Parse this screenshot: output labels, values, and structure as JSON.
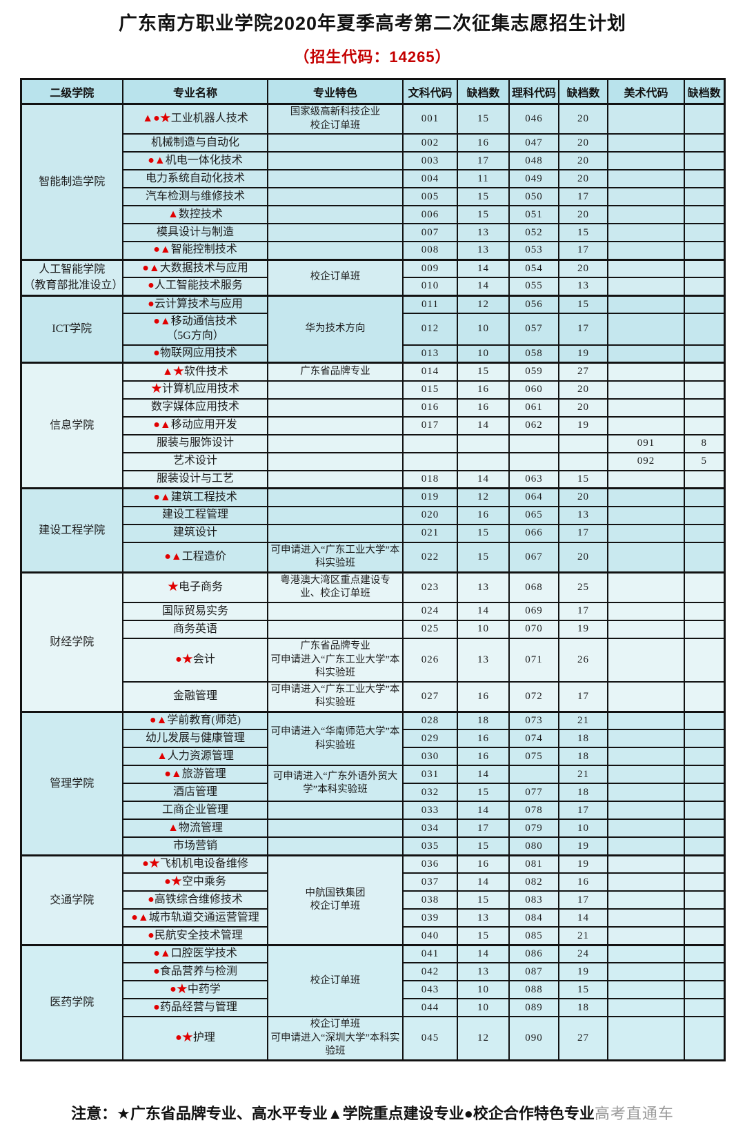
{
  "title": "广东南方职业学院2020年夏季高考第二次征集志愿招生计划",
  "subtitle": "（招生代码：14265）",
  "note": "注意：★广东省品牌专业、高水平专业▲学院重点建设专业●校企合作特色专业",
  "watermark": "高考直通车",
  "colors": {
    "symbol_red": "#e00000",
    "subtitle_red": "#c40000",
    "header_bg": "#b9e3ec",
    "border": "#121212"
  },
  "table": {
    "headers": [
      "二级学院",
      "专业名称",
      "专业特色",
      "文科代码",
      "缺档数",
      "理科代码",
      "缺档数",
      "美术代码",
      "缺档数"
    ],
    "groups": [
      {
        "college": "智能制造学院",
        "college2": "",
        "shade": "#cbe9ef",
        "rows": [
          {
            "sym": "▲●★",
            "major": "工业机器人技术",
            "major2": "",
            "feature": {
              "text": "国家级高新科技企业\n校企订单班",
              "span": 1
            },
            "cells": [
              "001",
              "15",
              "046",
              "20",
              "",
              ""
            ]
          },
          {
            "sym": "",
            "major": "机械制造与自动化",
            "major2": "",
            "feature": "",
            "cells": [
              "002",
              "16",
              "047",
              "20",
              "",
              ""
            ]
          },
          {
            "sym": "●▲",
            "major": "机电一体化技术",
            "major2": "",
            "feature": "",
            "cells": [
              "003",
              "17",
              "048",
              "20",
              "",
              ""
            ]
          },
          {
            "sym": "",
            "major": "电力系统自动化技术",
            "major2": "",
            "feature": "",
            "cells": [
              "004",
              "11",
              "049",
              "20",
              "",
              ""
            ]
          },
          {
            "sym": "",
            "major": "汽车检测与维修技术",
            "major2": "",
            "feature": "",
            "cells": [
              "005",
              "15",
              "050",
              "17",
              "",
              ""
            ]
          },
          {
            "sym": "▲",
            "major": "数控技术",
            "major2": "",
            "feature": "",
            "cells": [
              "006",
              "15",
              "051",
              "20",
              "",
              ""
            ]
          },
          {
            "sym": "",
            "major": "模具设计与制造",
            "major2": "",
            "feature": "",
            "cells": [
              "007",
              "13",
              "052",
              "15",
              "",
              ""
            ]
          },
          {
            "sym": "●▲",
            "major": "智能控制技术",
            "major2": "",
            "feature": "",
            "cells": [
              "008",
              "13",
              "053",
              "17",
              "",
              ""
            ]
          }
        ]
      },
      {
        "college": "人工智能学院",
        "college2": "（教育部批准设立）",
        "shade": "#d4edf2",
        "rows": [
          {
            "sym": "●▲",
            "major": "大数据技术与应用",
            "major2": "",
            "feature": {
              "text": "校企订单班",
              "span": 2
            },
            "cells": [
              "009",
              "14",
              "054",
              "20",
              "",
              ""
            ]
          },
          {
            "sym": "●",
            "major": "人工智能技术服务",
            "major2": "",
            "feature": null,
            "cells": [
              "010",
              "14",
              "055",
              "13",
              "",
              ""
            ]
          }
        ]
      },
      {
        "college": "ICT学院",
        "college2": "",
        "shade": "#c5e7ee",
        "rows": [
          {
            "sym": "●",
            "major": "云计算技术与应用",
            "major2": "",
            "feature": {
              "text": "华为技术方向",
              "span": 3
            },
            "cells": [
              "011",
              "12",
              "056",
              "15",
              "",
              ""
            ]
          },
          {
            "sym": "●▲",
            "major": "移动通信技术",
            "major2": "（5G方向）",
            "feature": null,
            "cells": [
              "012",
              "10",
              "057",
              "17",
              "",
              ""
            ]
          },
          {
            "sym": "●",
            "major": "物联网应用技术",
            "major2": "",
            "feature": null,
            "cells": [
              "013",
              "10",
              "058",
              "19",
              "",
              ""
            ]
          }
        ]
      },
      {
        "college": "信息学院",
        "college2": "",
        "shade": "#e4f4f6",
        "rows": [
          {
            "sym": "▲★",
            "major": "软件技术",
            "major2": "",
            "feature": {
              "text": "广东省品牌专业",
              "span": 1
            },
            "cells": [
              "014",
              "15",
              "059",
              "27",
              "",
              ""
            ]
          },
          {
            "sym": "★",
            "major": "计算机应用技术",
            "major2": "",
            "feature": "",
            "cells": [
              "015",
              "16",
              "060",
              "20",
              "",
              ""
            ]
          },
          {
            "sym": "",
            "major": "数字媒体应用技术",
            "major2": "",
            "feature": "",
            "cells": [
              "016",
              "16",
              "061",
              "20",
              "",
              ""
            ]
          },
          {
            "sym": "●▲",
            "major": "移动应用开发",
            "major2": "",
            "feature": "",
            "cells": [
              "017",
              "14",
              "062",
              "19",
              "",
              ""
            ]
          },
          {
            "sym": "",
            "major": "服装与服饰设计",
            "major2": "",
            "feature": "",
            "cells": [
              "",
              "",
              "",
              "",
              "091",
              "8"
            ]
          },
          {
            "sym": "",
            "major": "艺术设计",
            "major2": "",
            "feature": "",
            "cells": [
              "",
              "",
              "",
              "",
              "092",
              "5"
            ]
          },
          {
            "sym": "",
            "major": "服装设计与工艺",
            "major2": "",
            "feature": "",
            "cells": [
              "018",
              "14",
              "063",
              "15",
              "",
              ""
            ]
          }
        ]
      },
      {
        "college": "建设工程学院",
        "college2": "",
        "shade": "#c9e9ef",
        "rows": [
          {
            "sym": "●▲",
            "major": "建筑工程技术",
            "major2": "",
            "feature": "",
            "cells": [
              "019",
              "12",
              "064",
              "20",
              "",
              ""
            ]
          },
          {
            "sym": "",
            "major": "建设工程管理",
            "major2": "",
            "feature": "",
            "cells": [
              "020",
              "16",
              "065",
              "13",
              "",
              ""
            ]
          },
          {
            "sym": "",
            "major": "建筑设计",
            "major2": "",
            "feature": "",
            "cells": [
              "021",
              "15",
              "066",
              "17",
              "",
              ""
            ]
          },
          {
            "sym": "●▲",
            "major": "工程造价",
            "major2": "",
            "feature": {
              "text": "可申请进入“广东工业大学”本科实验班",
              "span": 1
            },
            "cells": [
              "022",
              "15",
              "067",
              "20",
              "",
              ""
            ]
          }
        ]
      },
      {
        "college": "财经学院",
        "college2": "",
        "shade": "#e7f5f7",
        "rows": [
          {
            "sym": "★",
            "major": "电子商务",
            "major2": "",
            "feature": {
              "text": "粤港澳大湾区重点建设专业、校企订单班",
              "span": 1
            },
            "cells": [
              "023",
              "13",
              "068",
              "25",
              "",
              ""
            ]
          },
          {
            "sym": "",
            "major": "国际贸易实务",
            "major2": "",
            "feature": "",
            "cells": [
              "024",
              "14",
              "069",
              "17",
              "",
              ""
            ]
          },
          {
            "sym": "",
            "major": "商务英语",
            "major2": "",
            "feature": "",
            "cells": [
              "025",
              "10",
              "070",
              "19",
              "",
              ""
            ]
          },
          {
            "sym": "●★",
            "major": "会计",
            "major2": "",
            "feature": {
              "text": "广东省品牌专业\n可申请进入“广东工业大学”本科实验班",
              "span": 1
            },
            "cells": [
              "026",
              "13",
              "071",
              "26",
              "",
              ""
            ]
          },
          {
            "sym": "",
            "major": "金融管理",
            "major2": "",
            "feature": {
              "text": "可申请进入“广东工业大学”本科实验班",
              "span": 1
            },
            "cells": [
              "027",
              "16",
              "072",
              "17",
              "",
              ""
            ]
          }
        ]
      },
      {
        "college": "管理学院",
        "college2": "",
        "shade": "#cdebf1",
        "rows": [
          {
            "sym": "●▲",
            "major": "学前教育(师范)",
            "major2": "",
            "feature": {
              "text": "可申请进入“华南师范大学”本科实验班",
              "span": 3
            },
            "cells": [
              "028",
              "18",
              "073",
              "21",
              "",
              ""
            ]
          },
          {
            "sym": "",
            "major": "幼儿发展与健康管理",
            "major2": "",
            "feature": null,
            "cells": [
              "029",
              "16",
              "074",
              "18",
              "",
              ""
            ]
          },
          {
            "sym": "▲",
            "major": "人力资源管理",
            "major2": "",
            "feature": null,
            "cells": [
              "030",
              "16",
              "075",
              "18",
              "",
              ""
            ]
          },
          {
            "sym": "●▲",
            "major": "旅游管理",
            "major2": "",
            "feature": {
              "text": "可申请进入“广东外语外贸大学”本科实验班",
              "span": 2
            },
            "cells": [
              "031",
              "14",
              "",
              "21",
              "",
              ""
            ]
          },
          {
            "sym": "",
            "major": "酒店管理",
            "major2": "",
            "feature": null,
            "cells": [
              "032",
              "15",
              "077",
              "18",
              "",
              ""
            ]
          },
          {
            "sym": "",
            "major": "工商企业管理",
            "major2": "",
            "feature": "",
            "cells": [
              "033",
              "14",
              "078",
              "17",
              "",
              ""
            ]
          },
          {
            "sym": "▲",
            "major": "物流管理",
            "major2": "",
            "feature": "",
            "cells": [
              "034",
              "17",
              "079",
              "10",
              "",
              ""
            ]
          },
          {
            "sym": "",
            "major": "市场营销",
            "major2": "",
            "feature": "",
            "cells": [
              "035",
              "15",
              "080",
              "19",
              "",
              ""
            ]
          }
        ]
      },
      {
        "college": "交通学院",
        "college2": "",
        "shade": "#ddf1f5",
        "rows": [
          {
            "sym": "●★",
            "major": "飞机机电设备维修",
            "major2": "",
            "feature": {
              "text": "中航国铁集团\n校企订单班",
              "span": 5
            },
            "cells": [
              "036",
              "16",
              "081",
              "19",
              "",
              ""
            ]
          },
          {
            "sym": "●★",
            "major": "空中乘务",
            "major2": "",
            "feature": null,
            "cells": [
              "037",
              "14",
              "082",
              "16",
              "",
              ""
            ]
          },
          {
            "sym": "●",
            "major": "高铁综合维修技术",
            "major2": "",
            "feature": null,
            "cells": [
              "038",
              "15",
              "083",
              "17",
              "",
              ""
            ]
          },
          {
            "sym": "●▲",
            "major": "城市轨道交通运营管理",
            "major2": "",
            "feature": null,
            "cells": [
              "039",
              "13",
              "084",
              "14",
              "",
              ""
            ]
          },
          {
            "sym": "●",
            "major": "民航安全技术管理",
            "major2": "",
            "feature": null,
            "cells": [
              "040",
              "15",
              "085",
              "21",
              "",
              ""
            ]
          }
        ]
      },
      {
        "college": "医药学院",
        "college2": "",
        "shade": "#d2eef3",
        "rows": [
          {
            "sym": "●▲",
            "major": "口腔医学技术",
            "major2": "",
            "feature": {
              "text": "校企订单班",
              "span": 4
            },
            "cells": [
              "041",
              "14",
              "086",
              "24",
              "",
              ""
            ]
          },
          {
            "sym": "●",
            "major": "食品营养与检测",
            "major2": "",
            "feature": null,
            "cells": [
              "042",
              "13",
              "087",
              "19",
              "",
              ""
            ]
          },
          {
            "sym": "●★",
            "major": "中药学",
            "major2": "",
            "feature": null,
            "cells": [
              "043",
              "10",
              "088",
              "15",
              "",
              ""
            ]
          },
          {
            "sym": "●",
            "major": "药品经营与管理",
            "major2": "",
            "feature": null,
            "cells": [
              "044",
              "10",
              "089",
              "18",
              "",
              ""
            ]
          },
          {
            "sym": "●★",
            "major": "护理",
            "major2": "",
            "feature": {
              "text": "校企订单班\n可申请进入“深圳大学”本科实验班",
              "span": 1
            },
            "cells": [
              "045",
              "12",
              "090",
              "27",
              "",
              ""
            ]
          }
        ]
      }
    ]
  }
}
